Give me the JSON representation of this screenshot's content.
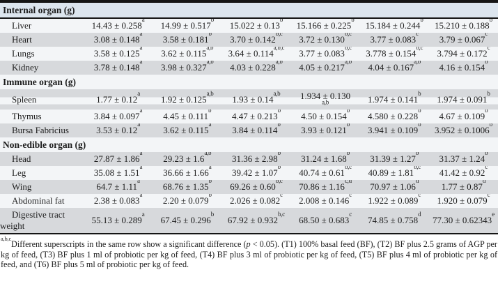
{
  "colors": {
    "stripe-gray": "#d7d9dc",
    "row-light": "#f3f5f7",
    "header-blue": "#dce5ee",
    "border-black": "#151515",
    "text": "#1d1d1d"
  },
  "table": {
    "sections": [
      {
        "header": "Internal organ (g)",
        "rows": [
          {
            "label": "Liver",
            "cells": [
              {
                "v": "14.43 ± 0.258",
                "s": "a"
              },
              {
                "v": "14.99 ± 0.517",
                "s": "b"
              },
              {
                "v": "15.022 ± 0.13",
                "s": "b"
              },
              {
                "v": "15.166 ± 0.225",
                "s": "b"
              },
              {
                "v": "15.184 ± 0.244",
                "s": "b"
              },
              {
                "v": "15.210 ± 0.188",
                "s": "b"
              }
            ]
          },
          {
            "label": "Heart",
            "cells": [
              {
                "v": "3.08 ± 0.148",
                "s": "a"
              },
              {
                "v": "3.58 ± 0.181",
                "s": "b"
              },
              {
                "v": "3.70 ± 0.142",
                "s": "b,c"
              },
              {
                "v": "3.72 ± 0.130",
                "s": "b,c"
              },
              {
                "v": "3.77 ± 0.083",
                "s": "c"
              },
              {
                "v": "3.79 ± 0.067",
                "s": "c"
              }
            ]
          },
          {
            "label": "Lungs",
            "cells": [
              {
                "v": "3.58 ± 0.125",
                "s": "a"
              },
              {
                "v": "3.62 ± 0.115",
                "s": "a,b"
              },
              {
                "v": "3.64 ± 0.114",
                "s": "a,b,c"
              },
              {
                "v": "3.77 ± 0.083",
                "s": "b,c"
              },
              {
                "v": "3.778 ± 0.154",
                "s": "b,c"
              },
              {
                "v": "3.794 ± 0.172",
                "s": "c"
              }
            ]
          },
          {
            "label": "Kidney",
            "cells": [
              {
                "v": "3.78 ± 0.148",
                "s": "a"
              },
              {
                "v": "3.98 ± 0.327",
                "s": "a,b"
              },
              {
                "v": "4.03 ± 0.228",
                "s": "a,b"
              },
              {
                "v": "4.05 ± 0.217",
                "s": "a,b"
              },
              {
                "v": "4.04 ± 0.167",
                "s": "a,b"
              },
              {
                "v": "4.16 ± 0.154",
                "s": "b"
              }
            ]
          }
        ]
      },
      {
        "header": "Immune organ (g)",
        "rows": [
          {
            "label": "Spleen",
            "cells": [
              {
                "v": "1.77 ± 0.12",
                "s": "a"
              },
              {
                "v": "1.92 ± 0.125",
                "s": "a,b"
              },
              {
                "v": "1.93 ± 0.14",
                "s": "a,b"
              },
              {
                "v": "1.934 ± 0.130",
                "s": "a,b",
                "wrap": true
              },
              {
                "v": "1.974 ± 0.141",
                "s": "b"
              },
              {
                "v": "1.974 ± 0.091",
                "s": "b"
              }
            ]
          },
          {
            "label": "Thymus",
            "cells": [
              {
                "v": "3.84 ± 0.097",
                "s": "a"
              },
              {
                "v": "4.45 ± 0.111",
                "s": "b"
              },
              {
                "v": "4.47 ± 0.213",
                "s": "b"
              },
              {
                "v": "4.50 ± 0.154",
                "s": "b"
              },
              {
                "v": "4.580 ± 0.228",
                "s": "b"
              },
              {
                "v": "4.67 ± 0.109",
                "s": "b"
              }
            ]
          },
          {
            "label": "Bursa Fabricius",
            "cells": [
              {
                "v": "3.53 ± 0.12",
                "s": "a"
              },
              {
                "v": "3.62 ± 0.115",
                "s": "a"
              },
              {
                "v": "3.84 ± 0.114",
                "s": "b"
              },
              {
                "v": "3.93 ± 0.121",
                "s": "b"
              },
              {
                "v": "3.941 ± 0.109",
                "s": "b"
              },
              {
                "v": "3.952 ± 0.1006",
                "s": "b"
              }
            ]
          }
        ]
      },
      {
        "header": "Non-edible organ (g)",
        "rows": [
          {
            "label": "Head",
            "cells": [
              {
                "v": "27.87 ± 1.86",
                "s": "a"
              },
              {
                "v": "29.23 ± 1.6",
                "s": "a,b"
              },
              {
                "v": "31.36 ± 2.98",
                "s": "b"
              },
              {
                "v": "31.24 ± 1.68",
                "s": "b"
              },
              {
                "v": "31.39 ± 1.27",
                "s": "b"
              },
              {
                "v": "31.37 ± 1.24",
                "s": "b"
              }
            ]
          },
          {
            "label": "Leg",
            "cells": [
              {
                "v": "35.08 ± 1.51",
                "s": "a"
              },
              {
                "v": "36.66 ± 1.66",
                "s": "a"
              },
              {
                "v": "39.42 ± 1.07",
                "s": "b"
              },
              {
                "v": "40.74 ± 0.61",
                "s": "b,c"
              },
              {
                "v": "40.89 ± 1.81",
                "s": "b,c"
              },
              {
                "v": "41.42 ± 0.92",
                "s": "c"
              }
            ]
          },
          {
            "label": "Wing",
            "cells": [
              {
                "v": "64.7 ± 1.11",
                "s": "a"
              },
              {
                "v": "68.76 ± 1.35",
                "s": "b"
              },
              {
                "v": "69.26 ± 0.60",
                "s": "b,c"
              },
              {
                "v": "70.86 ± 1.16",
                "s": "c,d"
              },
              {
                "v": "70.97 ± 1.06",
                "s": "d"
              },
              {
                "v": "1.77 ± 0.87",
                "s": "d"
              }
            ]
          },
          {
            "label": "Abdominal fat",
            "cells": [
              {
                "v": "2.38 ± 0.083",
                "s": "a"
              },
              {
                "v": "2.20 ± 0.079",
                "s": "b"
              },
              {
                "v": "2.026 ± 0.082",
                "s": "c"
              },
              {
                "v": "2.008 ± 0.146",
                "s": "c"
              },
              {
                "v": "1.922 ± 0.089",
                "s": "c"
              },
              {
                "v": "1.920 ± 0.079",
                "s": "c"
              }
            ]
          },
          {
            "label": "Digestive tract weight",
            "cells": [
              {
                "v": "55.13 ± 0.289",
                "s": "a"
              },
              {
                "v": "67.45 ± 0.296",
                "s": "b"
              },
              {
                "v": "67.92 ± 0.932",
                "s": "b,c"
              },
              {
                "v": "68.50 ± 0.683",
                "s": "c"
              },
              {
                "v": "74.85 ± 0.758",
                "s": "d"
              },
              {
                "v": "77.30 ± 0.62343",
                "s": "e"
              }
            ]
          }
        ]
      }
    ]
  },
  "footnote": {
    "sup": "a,b,c",
    "text_pre": "Different superscripts in the same row show a significant difference (",
    "p_italic": "p",
    "text_post": " < 0.05). (T1) 100% basal feed (BF), (T2) BF plus 2.5 grams of AGP per kg of feed, (T3) BF plus 1 ml of probiotic per kg of feed, (T4) BF plus 3 ml of probiotic per kg of feed, (T5) BF plus 4 ml of probiotic per kg of feed, and (T6) BF plus 5 ml of probiotic per kg of feed."
  }
}
